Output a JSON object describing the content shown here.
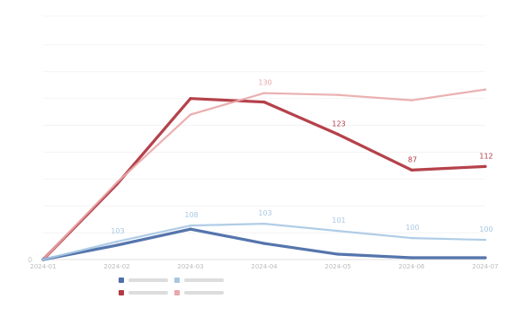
{
  "chart_data": {
    "type": "line",
    "title": "",
    "xlabel": "",
    "ylabel": "",
    "x": [
      "2024-01",
      "2024-02",
      "2024-03",
      "2024-04",
      "2024-05",
      "2024-06",
      "2024-07"
    ],
    "ylim": [
      0,
      136
    ],
    "ytick_labels": [
      "0",
      "",
      "",
      "",
      "",
      "",
      "",
      "",
      "",
      ""
    ],
    "grid": false,
    "legend_position": "bottom-left",
    "series": [
      {
        "name": "",
        "color": "#b23a44",
        "values": [
          0,
          42,
          90,
          88,
          70,
          50,
          52
        ],
        "data_labels": [
          "",
          "",
          "",
          "",
          "123",
          "87",
          "112"
        ],
        "style": "solid-bold"
      },
      {
        "name": "",
        "color": "#e9a7a8",
        "values": [
          0,
          43,
          81,
          93,
          92,
          89,
          95
        ],
        "data_labels": [
          "",
          "",
          "",
          "130",
          "",
          "",
          ""
        ],
        "style": "light"
      },
      {
        "name": "",
        "color": "#4f6faa",
        "values": [
          0,
          8,
          17,
          9,
          3,
          1,
          1
        ],
        "data_labels": [
          "",
          "",
          "",
          "",
          "",
          "",
          ""
        ],
        "style": "solid-bold"
      },
      {
        "name": "",
        "color": "#a7c8e3",
        "values": [
          0,
          10,
          19,
          20,
          16,
          12,
          11
        ],
        "data_labels": [
          "",
          "103",
          "108",
          "103",
          "101",
          "100",
          "100"
        ],
        "style": "light"
      }
    ]
  }
}
